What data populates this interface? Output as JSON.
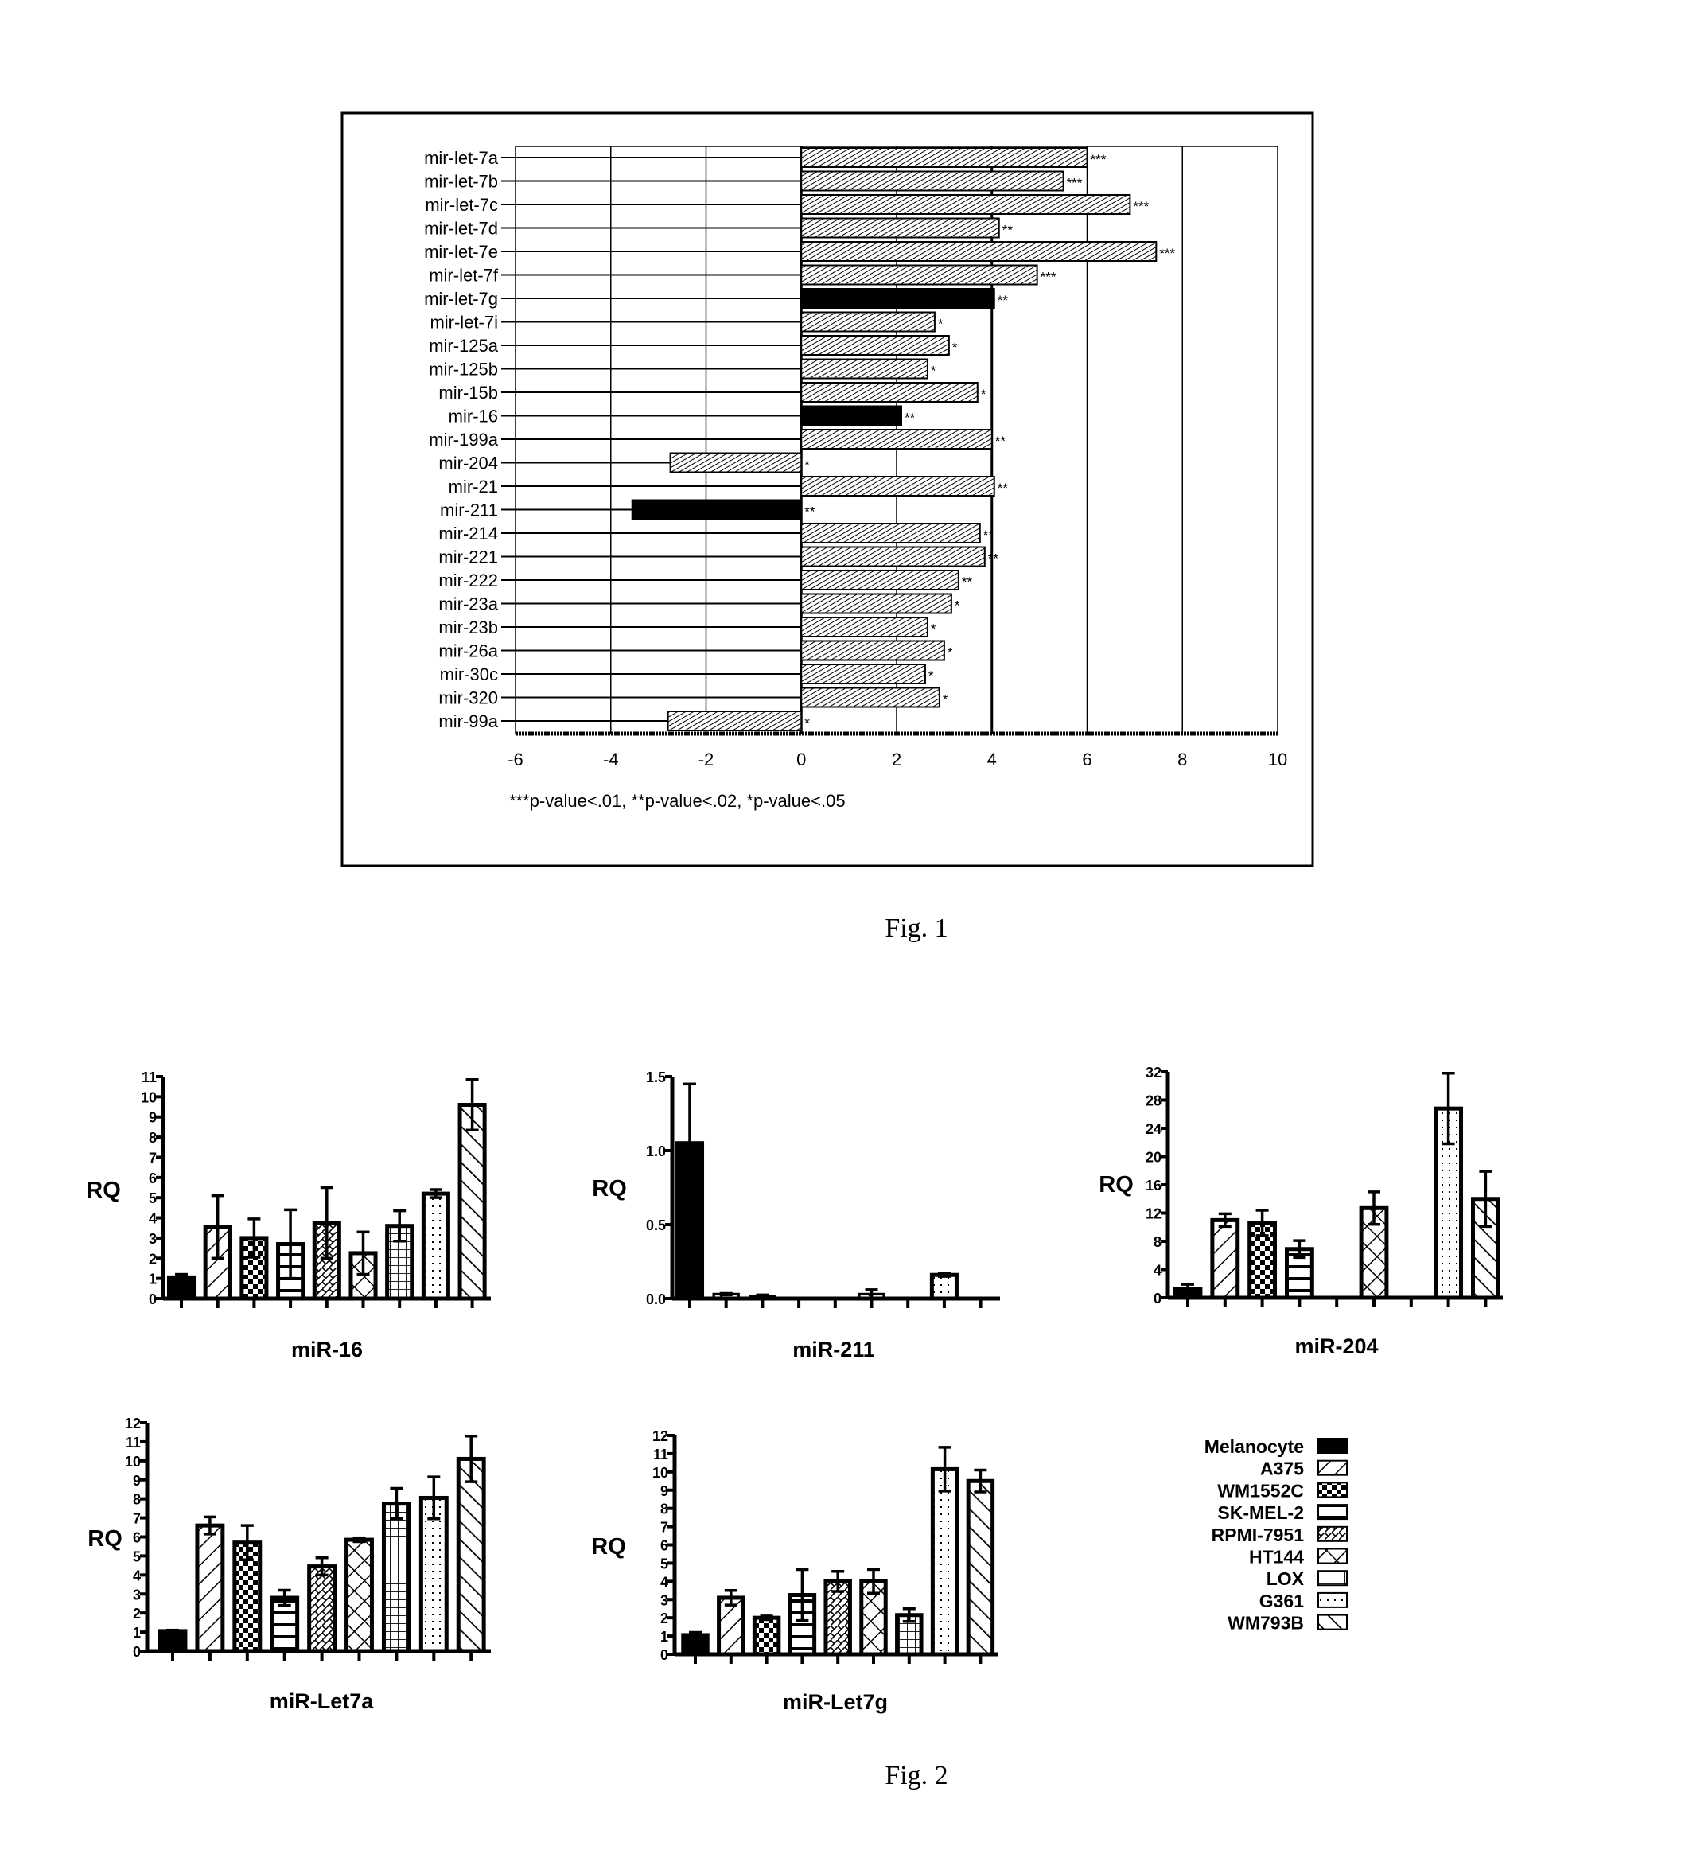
{
  "figure_labels": [
    "Fig. 1",
    "Fig. 2"
  ],
  "legend": {
    "items": [
      "Melanocyte",
      "A375",
      "WM1552C",
      "SK-MEL-2",
      "RPMI-7951",
      "HT144",
      "LOX",
      "G361",
      "WM793B"
    ],
    "patterns": [
      "solid",
      "diag-forward",
      "checker",
      "horizontal",
      "fine-crosshatch",
      "diamond",
      "grid",
      "dots",
      "diag-back"
    ]
  },
  "chart_data": [
    {
      "type": "bar",
      "orientation": "horizontal",
      "categories": [
        "mir-let-7a",
        "mir-let-7b",
        "mir-let-7c",
        "mir-let-7d",
        "mir-let-7e",
        "mir-let-7f",
        "mir-let-7g",
        "mir-let-7i",
        "mir-125a",
        "mir-125b",
        "mir-15b",
        "mir-16",
        "mir-199a",
        "mir-204",
        "mir-21",
        "mir-211",
        "mir-214",
        "mir-221",
        "mir-222",
        "mir-23a",
        "mir-23b",
        "mir-26a",
        "mir-30c",
        "mir-320",
        "mir-99a"
      ],
      "values": [
        6.0,
        5.5,
        6.9,
        4.15,
        7.45,
        4.95,
        4.05,
        2.8,
        3.1,
        2.65,
        3.7,
        2.1,
        4.0,
        -2.75,
        4.05,
        -3.55,
        3.75,
        3.85,
        3.3,
        3.15,
        2.65,
        3.0,
        2.6,
        2.9,
        -2.8
      ],
      "significance": [
        "***",
        "***",
        "***",
        "**",
        "***",
        "***",
        "**",
        "*",
        "*",
        "*",
        "*",
        "**",
        "**",
        "*",
        "**",
        "**",
        "**",
        "**",
        "**",
        "*",
        "*",
        "*",
        "*",
        "*",
        "*"
      ],
      "highlighted": [
        "mir-let-7g",
        "mir-16",
        "mir-211"
      ],
      "xlim": [
        -6,
        10
      ],
      "xticks": [
        "-6",
        "-4",
        "-2",
        "0",
        "2",
        "4",
        "6",
        "8",
        "10"
      ],
      "grid": true,
      "footnote": "***p-value<.01, **p-value<.02, *p-value<.05",
      "colors": {
        "highlight": "#000000",
        "default": "hatched"
      }
    },
    {
      "type": "bar",
      "title": "miR-16",
      "ylabel": "RQ",
      "ylim": [
        0,
        11
      ],
      "yticks": [
        "0",
        "1",
        "2",
        "3",
        "4",
        "5",
        "6",
        "7",
        "8",
        "9",
        "10",
        "11"
      ],
      "values": [
        1.05,
        3.55,
        3.0,
        2.7,
        3.75,
        2.25,
        3.6,
        5.2,
        9.6
      ],
      "errors": [
        0.15,
        1.55,
        0.95,
        1.7,
        1.75,
        1.05,
        0.75,
        0.2,
        1.25
      ]
    },
    {
      "type": "bar",
      "title": "miR-211",
      "ylabel": "RQ",
      "ylim": [
        0,
        1.5
      ],
      "yticks": [
        "0.0",
        "0.5",
        "1.0",
        "1.5"
      ],
      "values": [
        1.05,
        0.03,
        0.02,
        0.005,
        0,
        0.03,
        0,
        0.16,
        0
      ],
      "errors": [
        0.4,
        0.005,
        0.005,
        0,
        0,
        0.03,
        0,
        0.01,
        0
      ]
    },
    {
      "type": "bar",
      "title": "miR-204",
      "ylabel": "RQ",
      "ylim": [
        0,
        32
      ],
      "yticks": [
        "0",
        "4",
        "8",
        "12",
        "16",
        "20",
        "24",
        "28",
        "32"
      ],
      "values": [
        1.2,
        11.0,
        10.6,
        6.9,
        0.1,
        12.7,
        0,
        26.8,
        14.0
      ],
      "errors": [
        0.7,
        0.9,
        1.8,
        1.2,
        0,
        2.3,
        0,
        5.0,
        3.9
      ]
    },
    {
      "type": "bar",
      "title": "miR-Let7a",
      "ylabel": "RQ",
      "ylim": [
        0,
        12
      ],
      "yticks": [
        "0",
        "1",
        "2",
        "3",
        "4",
        "5",
        "6",
        "7",
        "8",
        "9",
        "10",
        "11",
        "12"
      ],
      "values": [
        1.05,
        6.6,
        5.7,
        2.8,
        4.45,
        5.85,
        7.75,
        8.05,
        10.1
      ],
      "errors": [
        0.05,
        0.45,
        0.9,
        0.4,
        0.45,
        0.1,
        0.8,
        1.1,
        1.2
      ]
    },
    {
      "type": "bar",
      "title": "miR-Let7g",
      "ylabel": "RQ",
      "ylim": [
        0,
        12
      ],
      "yticks": [
        "0",
        "1",
        "2",
        "3",
        "4",
        "5",
        "6",
        "7",
        "8",
        "9",
        "10",
        "11",
        "12"
      ],
      "values": [
        1.05,
        3.1,
        2.0,
        3.25,
        4.0,
        4.0,
        2.15,
        10.15,
        9.5
      ],
      "errors": [
        0.15,
        0.4,
        0.1,
        1.4,
        0.55,
        0.65,
        0.35,
        1.2,
        0.6
      ]
    }
  ]
}
